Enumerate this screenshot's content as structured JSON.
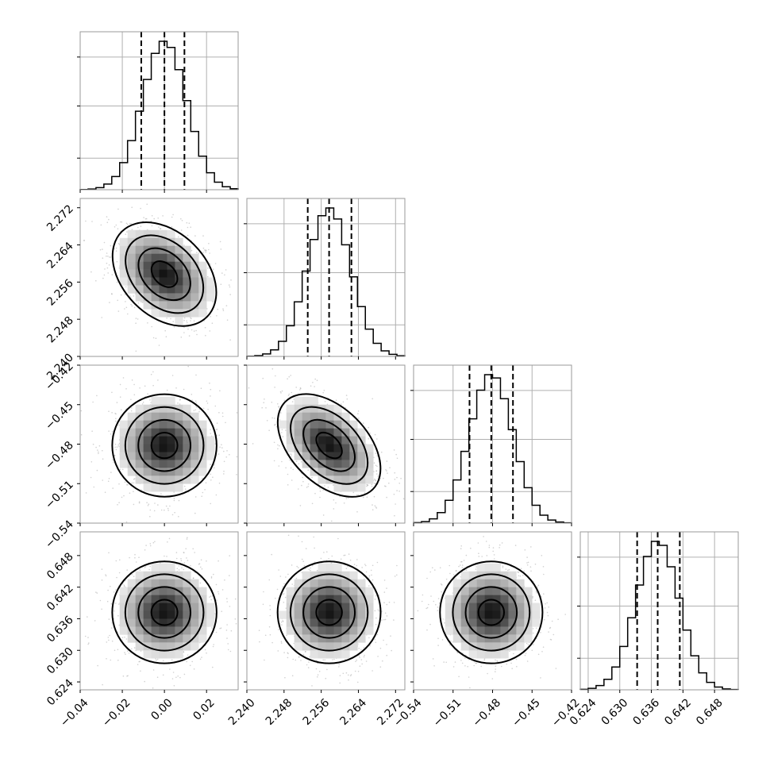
{
  "chart_data": {
    "type": "corner",
    "parameters": [
      {
        "index": 0,
        "range": [
          -0.04,
          0.035
        ],
        "median": 0.0,
        "q16": -0.011,
        "q84": 0.0095,
        "sigma": 0.0105,
        "ticks": [
          -0.04,
          -0.02,
          0.0,
          0.02
        ],
        "tick_labels": [
          "−0.04",
          "−0.02",
          "0.00",
          "0.02"
        ]
      },
      {
        "index": 1,
        "range": [
          2.24,
          2.274
        ],
        "median": 2.2577,
        "q16": 2.2531,
        "q84": 2.2625,
        "sigma": 0.0047,
        "ticks": [
          2.24,
          2.248,
          2.256,
          2.264,
          2.272
        ],
        "tick_labels": [
          "2.240",
          "2.248",
          "2.256",
          "2.264",
          "2.272"
        ]
      },
      {
        "index": 2,
        "range": [
          -0.54,
          -0.42
        ],
        "median": -0.481,
        "q16": -0.4975,
        "q84": -0.4645,
        "sigma": 0.0165,
        "ticks": [
          -0.54,
          -0.51,
          -0.48,
          -0.45,
          -0.42
        ],
        "tick_labels": [
          "−0.54",
          "−0.51",
          "−0.48",
          "−0.45",
          "−0.42"
        ]
      },
      {
        "index": 3,
        "range": [
          0.6225,
          0.6525
        ],
        "median": 0.6372,
        "q16": 0.6333,
        "q84": 0.6414,
        "sigma": 0.0041,
        "ticks": [
          0.624,
          0.63,
          0.636,
          0.642,
          0.648
        ],
        "tick_labels": [
          "0.624",
          "0.630",
          "0.636",
          "0.642",
          "0.648"
        ]
      }
    ],
    "correlations": {
      "0-1": -0.35,
      "0-2": 0.0,
      "0-3": 0.0,
      "1-2": -0.45,
      "1-3": 0.0,
      "2-3": 0.0
    },
    "contour_levels_sigma": [
      0.5,
      1.0,
      1.5,
      2.0
    ],
    "histogram_bins": 20,
    "grid": true,
    "title": "",
    "xlabel": "",
    "ylabel": ""
  }
}
